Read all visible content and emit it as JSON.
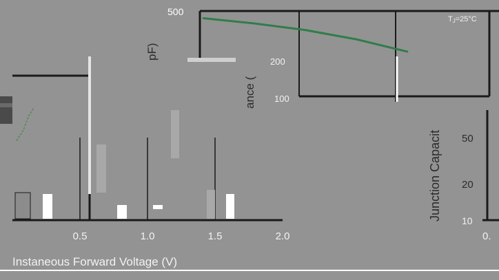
{
  "chart_data": [
    {
      "type": "line",
      "title": "",
      "xlabel": "Instaneous Forward Voltage (V)",
      "ylabel": "",
      "xlim": [
        0.0,
        2.0
      ],
      "x_ticks": [
        "0.5",
        "1.0",
        "1.5",
        "2.0"
      ],
      "x_tick_values": [
        0.5,
        1.0,
        1.5,
        2.0
      ],
      "grid": true,
      "series": [
        {
          "x": [
            0.03,
            0.08,
            0.12,
            0.16
          ],
          "y": [
            0.55,
            0.62,
            0.72,
            0.78
          ]
        }
      ],
      "colors": {
        "series": "#4f8a4f",
        "axis": "#1a1a1a",
        "text": "#f2f2f2"
      }
    },
    {
      "type": "line",
      "title": "",
      "xlabel": "",
      "ylabel_fragment_top": "pF)",
      "ylabel_fragment_mid": "ance (",
      "ylabel_fragment_bottom": "Junction Capacit",
      "y_scale": "log",
      "y_ticks_top": [
        "500",
        "200",
        "100"
      ],
      "y_ticks_bottom": [
        "50",
        "20",
        "10"
      ],
      "x_tick_fragment": "0.",
      "annotation": "TJ=25°C",
      "annotation_main": "T",
      "annotation_sub": "J",
      "annotation_rest": "=25°C",
      "grid": true,
      "series": [
        {
          "x": [
            0.0,
            0.25,
            0.5,
            0.75,
            1.0
          ],
          "y": [
            440,
            400,
            355,
            300,
            240
          ]
        }
      ],
      "colors": {
        "series": "#2f7d4b",
        "axis": "#1a1a1a",
        "text": "#f2f2f2"
      }
    }
  ]
}
